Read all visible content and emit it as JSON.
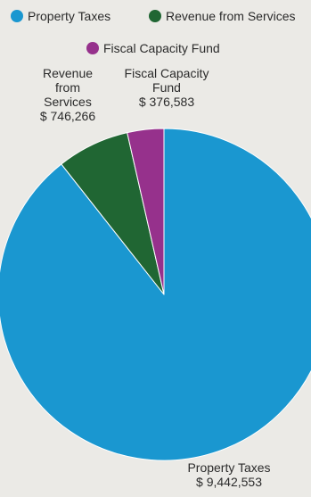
{
  "chart_data": {
    "type": "pie",
    "legend": [
      "Property Taxes",
      "Revenue from Services",
      "Fiscal Capacity Fund"
    ],
    "slices": [
      {
        "name": "Property Taxes",
        "value": 9442553,
        "label_lines": [
          "Property Taxes",
          "$ 9,442,553"
        ],
        "color": "#1a97d0"
      },
      {
        "name": "Revenue from Services",
        "value": 746266,
        "label_lines": [
          "Revenue",
          "from",
          "Services",
          "$ 746,266"
        ],
        "color": "#206633"
      },
      {
        "name": "Fiscal Capacity Fund",
        "value": 376583,
        "label_lines": [
          "Fiscal Capacity",
          "Fund",
          "$ 376,583"
        ],
        "color": "#96318c"
      }
    ],
    "start_angle": "12 o'clock",
    "direction": "clockwise",
    "legend_position": "top"
  }
}
